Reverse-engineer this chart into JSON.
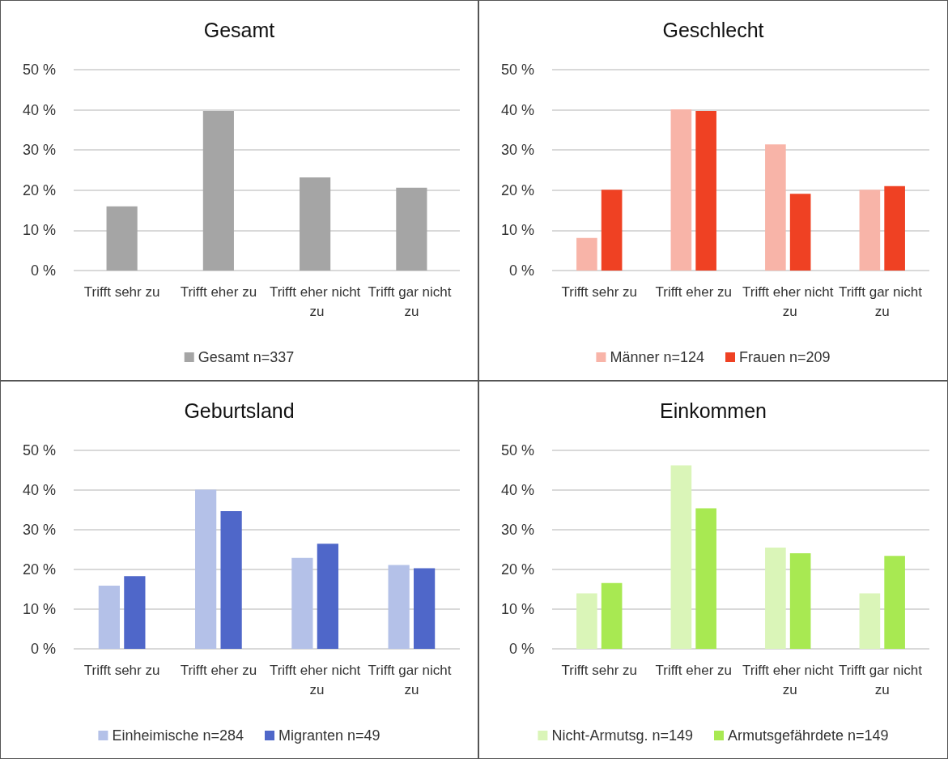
{
  "chart_data": [
    {
      "type": "bar",
      "title": "Gesamt",
      "categories": [
        "Trifft sehr zu",
        "Trifft eher zu",
        "Trifft eher nicht zu",
        "Trifft gar nicht zu"
      ],
      "series": [
        {
          "name": "Gesamt n=337",
          "color": "#a5a5a5",
          "values": [
            16.0,
            39.7,
            23.2,
            20.6
          ]
        }
      ],
      "ylim": [
        0,
        50
      ],
      "yticks": [
        {
          "value": 0,
          "label": "0 %"
        },
        {
          "value": 10,
          "label": "10 %"
        },
        {
          "value": 20,
          "label": "20 %"
        },
        {
          "value": 30,
          "label": "30 %"
        },
        {
          "value": 40,
          "label": "40 %"
        },
        {
          "value": 50,
          "label": "50 %"
        }
      ],
      "grid": "y",
      "legend": "bottom"
    },
    {
      "type": "bar",
      "title": "Geschlecht",
      "categories": [
        "Trifft sehr zu",
        "Trifft eher zu",
        "Trifft eher nicht zu",
        "Trifft gar nicht zu"
      ],
      "series": [
        {
          "name": "Männer n=124",
          "color": "#f8b4a8",
          "values": [
            8.1,
            40.1,
            31.4,
            20.1
          ]
        },
        {
          "name": "Frauen n=209",
          "color": "#ef4123",
          "values": [
            20.1,
            39.7,
            19.1,
            21.0
          ]
        }
      ],
      "ylim": [
        0,
        50
      ],
      "yticks": [
        {
          "value": 0,
          "label": "0 %"
        },
        {
          "value": 10,
          "label": "10 %"
        },
        {
          "value": 20,
          "label": "20 %"
        },
        {
          "value": 30,
          "label": "30 %"
        },
        {
          "value": 40,
          "label": "40 %"
        },
        {
          "value": 50,
          "label": "50 %"
        }
      ],
      "grid": "y",
      "legend": "bottom"
    },
    {
      "type": "bar",
      "title": "Geburtsland",
      "categories": [
        "Trifft sehr zu",
        "Trifft eher zu",
        "Trifft eher nicht zu",
        "Trifft gar nicht zu"
      ],
      "series": [
        {
          "name": "Einheimische n=284",
          "color": "#b4c1e8",
          "values": [
            15.9,
            40.1,
            22.9,
            21.1
          ]
        },
        {
          "name": "Migranten n=49",
          "color": "#4f67c9",
          "values": [
            18.3,
            34.7,
            26.5,
            20.3
          ]
        }
      ],
      "ylim": [
        0,
        50
      ],
      "yticks": [
        {
          "value": 0,
          "label": "0 %"
        },
        {
          "value": 10,
          "label": "10 %"
        },
        {
          "value": 20,
          "label": "20 %"
        },
        {
          "value": 30,
          "label": "30 %"
        },
        {
          "value": 40,
          "label": "40 %"
        },
        {
          "value": 50,
          "label": "50 %"
        }
      ],
      "grid": "y",
      "legend": "bottom"
    },
    {
      "type": "bar",
      "title": "Einkommen",
      "categories": [
        "Trifft sehr zu",
        "Trifft eher zu",
        "Trifft eher nicht zu",
        "Trifft gar nicht zu"
      ],
      "series": [
        {
          "name": "Nicht-Armutsg. n=149",
          "color": "#daf5b8",
          "values": [
            14.0,
            46.2,
            25.5,
            14.0
          ]
        },
        {
          "name": "Armutsgefährdete n=149",
          "color": "#a8e952",
          "values": [
            16.6,
            35.4,
            24.1,
            23.4
          ]
        }
      ],
      "ylim": [
        0,
        50
      ],
      "yticks": [
        {
          "value": 0,
          "label": "0 %"
        },
        {
          "value": 10,
          "label": "10 %"
        },
        {
          "value": 20,
          "label": "20 %"
        },
        {
          "value": 30,
          "label": "30 %"
        },
        {
          "value": 40,
          "label": "40 %"
        },
        {
          "value": 50,
          "label": "50 %"
        }
      ],
      "grid": "y",
      "legend": "bottom"
    }
  ]
}
